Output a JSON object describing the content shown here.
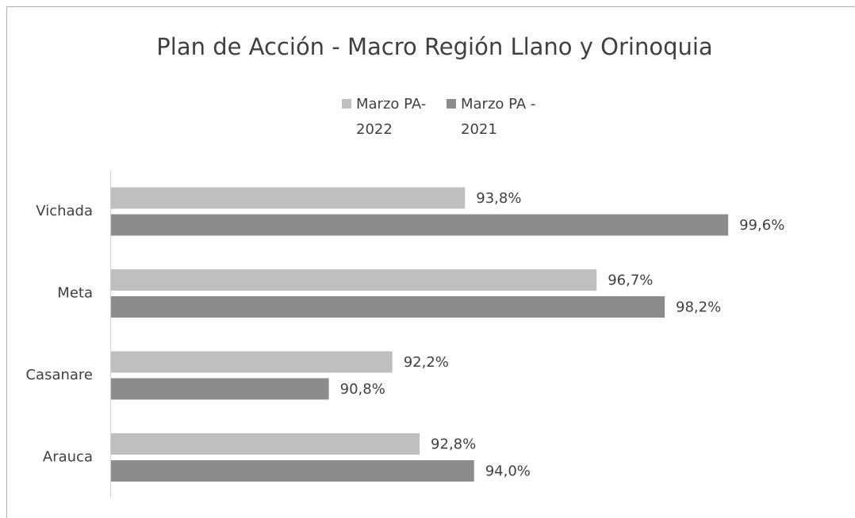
{
  "chart_data": {
    "type": "bar",
    "orientation": "horizontal",
    "title": "Plan de Acción - Macro Región Llano y Orinoquia",
    "categories": [
      "Vichada",
      "Meta",
      "Casanare",
      "Arauca"
    ],
    "series": [
      {
        "name": "Marzo PA- 2022",
        "color": "#bfbfbf",
        "values": [
          93.8,
          96.7,
          92.2,
          92.8
        ],
        "value_labels": [
          "93,8%",
          "96,7%",
          "92,2%",
          "92,8%"
        ]
      },
      {
        "name": "Marzo PA - 2021",
        "color": "#8c8c8c",
        "values": [
          99.6,
          98.2,
          90.8,
          94.0
        ],
        "value_labels": [
          "99,6%",
          "98,2%",
          "90,8%",
          "94,0%"
        ]
      }
    ],
    "xlim": [
      86,
      100
    ],
    "legend": "top"
  }
}
